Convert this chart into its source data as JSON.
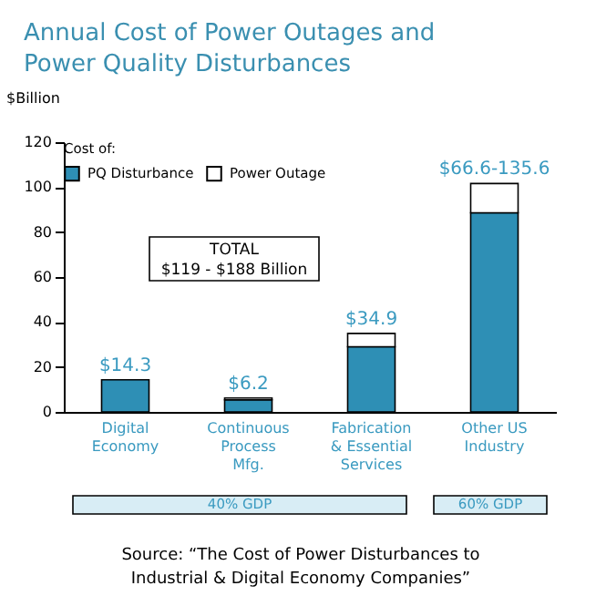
{
  "chart_data": {
    "type": "bar",
    "title": [
      "Annual Cost of Power Outages and",
      "Power Quality Disturbances"
    ],
    "ylabel": "$Billion",
    "legend_title": "Cost of:",
    "categories": [
      "Digital Economy",
      "Continuous Process Mfg.",
      "Fabrication & Essential Services",
      "Other US Industry"
    ],
    "stacked": true,
    "series": [
      {
        "name": "PQ Disturbance",
        "color": "#2e8fb5",
        "values": [
          14.3,
          5.4,
          29,
          88.6
        ]
      },
      {
        "name": "Power Outage",
        "color": "#ffffff",
        "values": [
          null,
          0.8,
          5.9,
          13
        ]
      }
    ],
    "totals": [
      "$14.3",
      "$6.2",
      "$34.9",
      "$66.6-135.6"
    ],
    "ylim": [
      0,
      120
    ],
    "yticks": [
      0,
      20,
      40,
      60,
      80,
      100,
      120
    ],
    "grid": false,
    "legend": "top left",
    "annotations": [
      "TOTAL\n$119 - $188 Billion",
      "40% GDP",
      "60% GDP",
      "Source: “The Cost of Power Disturbances to Industrial & Digital Economy Companies”"
    ]
  }
}
